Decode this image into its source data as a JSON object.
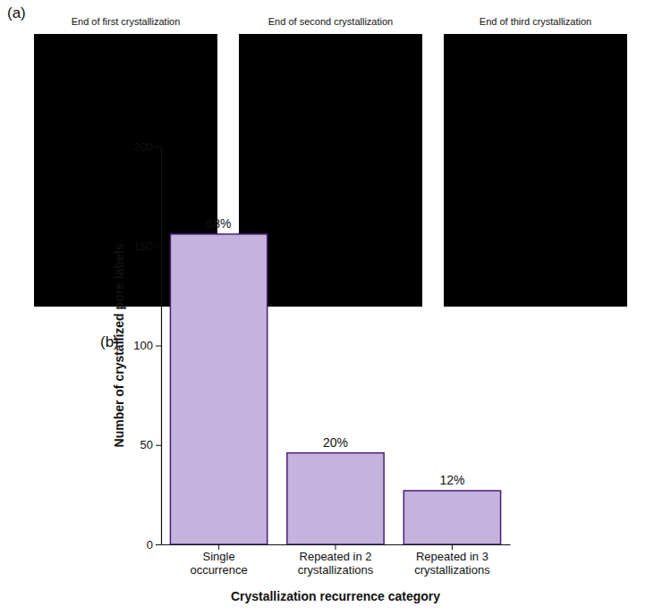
{
  "panel_labels": [
    "(a)",
    "(b)"
  ],
  "image_titles": [
    "End of first crystallization",
    "End of second crystallization",
    "End of third crystallization"
  ],
  "chart_data": {
    "type": "bar",
    "categories": [
      "Single occurrence",
      "Repeated in 2 crystallizations",
      "Repeated in 3 crystallizations"
    ],
    "values": [
      156,
      46,
      27
    ],
    "annotations": [
      "68%",
      "20%",
      "12%"
    ],
    "color": "#c4b3dc",
    "x_label": "Crystallization recurrence category",
    "y_label": "Number of crystallized pore labels",
    "ylim": [
      0,
      200
    ],
    "yticks": [
      0,
      50,
      100,
      150,
      200
    ],
    "grid": false
  }
}
